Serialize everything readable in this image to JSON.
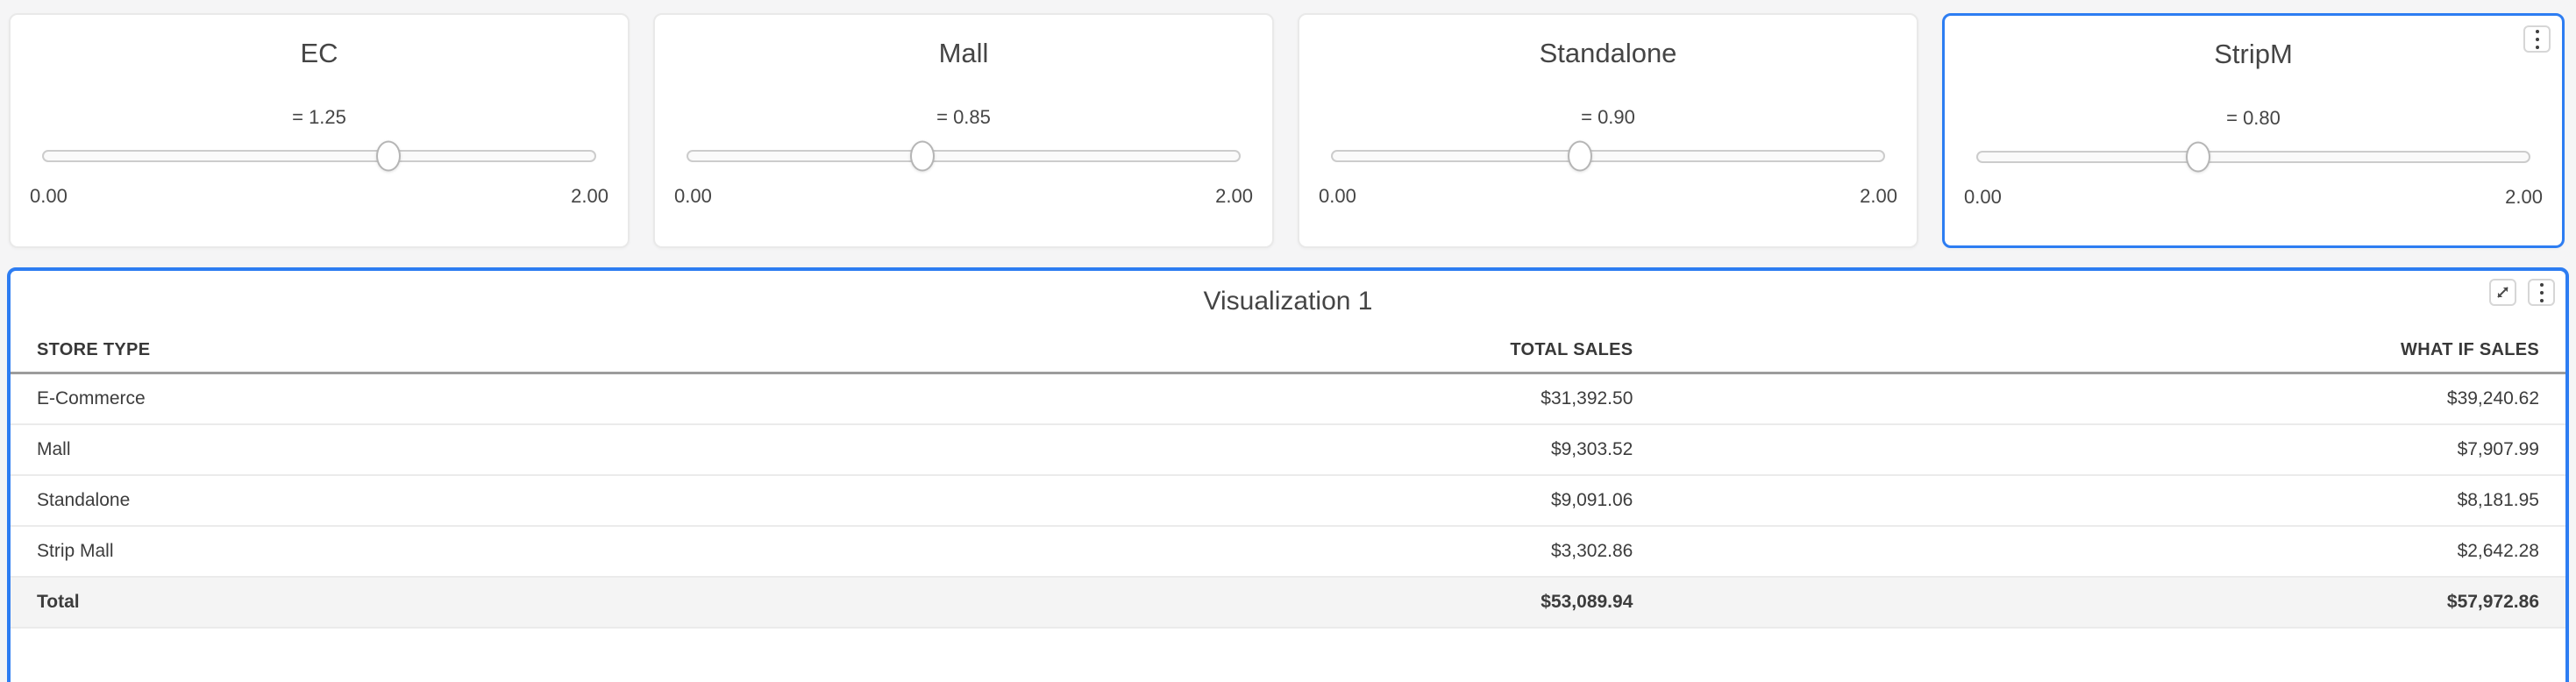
{
  "theme": {
    "accent": "#2d7df2",
    "page_bg": "#f5f5f6",
    "card_bg": "#ffffff",
    "text": "#454545",
    "table_text": "#3c3c3c",
    "header_divider": "#9c9c9c",
    "row_divider": "#ebebeb",
    "total_row_bg": "#f4f4f4"
  },
  "sliders": [
    {
      "title": "EC",
      "value": 1.25,
      "value_label": "= 1.25",
      "min": 0,
      "max": 2,
      "min_label": "0.00",
      "max_label": "2.00",
      "percent": 62.5,
      "selected": false,
      "has_menu": false
    },
    {
      "title": "Mall",
      "value": 0.85,
      "value_label": "= 0.85",
      "min": 0,
      "max": 2,
      "min_label": "0.00",
      "max_label": "2.00",
      "percent": 42.5,
      "selected": false,
      "has_menu": false
    },
    {
      "title": "Standalone",
      "value": 0.9,
      "value_label": "= 0.90",
      "min": 0,
      "max": 2,
      "min_label": "0.00",
      "max_label": "2.00",
      "percent": 45,
      "selected": false,
      "has_menu": false
    },
    {
      "title": "StripM",
      "value": 0.8,
      "value_label": "= 0.80",
      "min": 0,
      "max": 2,
      "min_label": "0.00",
      "max_label": "2.00",
      "percent": 40,
      "selected": true,
      "has_menu": true
    }
  ],
  "visualization": {
    "title": "Visualization 1",
    "icons": [
      "expand-icon",
      "kebab-menu-icon"
    ],
    "table": {
      "columns": [
        {
          "label": "STORE TYPE",
          "align": "left",
          "width": "40%"
        },
        {
          "label": "TOTAL SALES",
          "align": "mid",
          "width": "23.5%"
        },
        {
          "label": "WHAT IF SALES",
          "align": "right",
          "width": "36.5%"
        }
      ],
      "rows": [
        {
          "store_type": "E-Commerce",
          "total_sales": "$31,392.50",
          "what_if_sales": "$39,240.62"
        },
        {
          "store_type": "Mall",
          "total_sales": "$9,303.52",
          "what_if_sales": "$7,907.99"
        },
        {
          "store_type": "Standalone",
          "total_sales": "$9,091.06",
          "what_if_sales": "$8,181.95"
        },
        {
          "store_type": "Strip Mall",
          "total_sales": "$3,302.86",
          "what_if_sales": "$2,642.28"
        }
      ],
      "total_row": {
        "store_type": "Total",
        "total_sales": "$53,089.94",
        "what_if_sales": "$57,972.86"
      }
    }
  }
}
